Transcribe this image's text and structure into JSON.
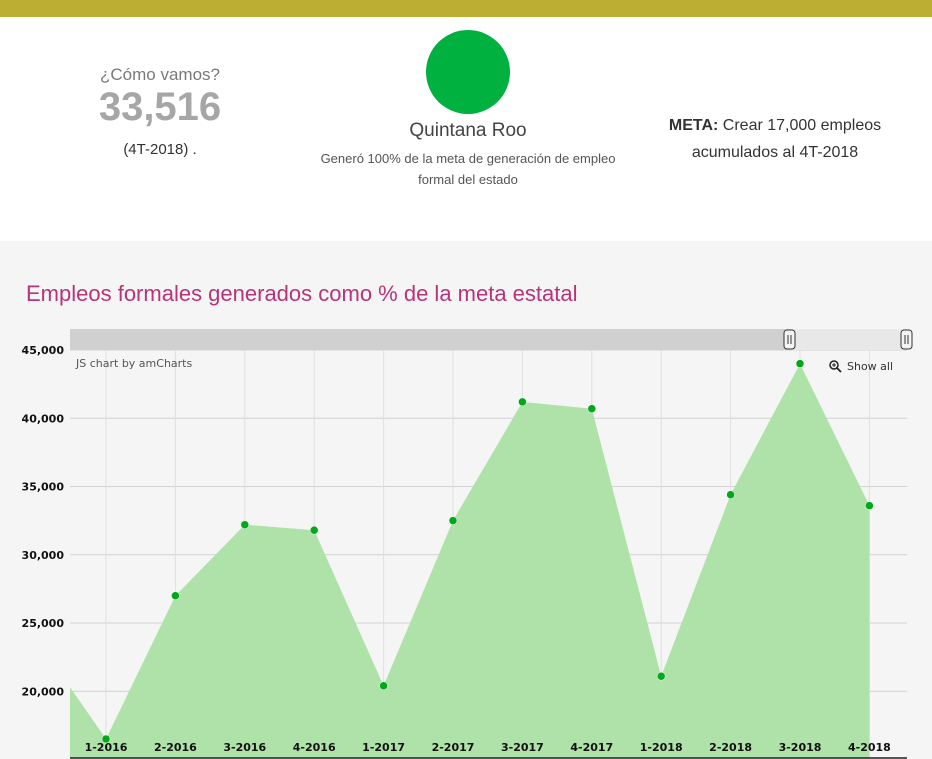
{
  "summary": {
    "question": "¿Cómo vamos?",
    "value": "33,516",
    "period": "(4T-2018) .",
    "state_color": "#00b140",
    "state_name": "Quintana Roo",
    "description": "Generó 100% de la meta de generación de empleo formal del estado",
    "meta_label": "META:",
    "meta_text": "Crear 17,000 empleos acumulados al 4T-2018"
  },
  "chart": {
    "title": "Empleos formales generados como % de la meta estatal",
    "credit": "JS chart by amCharts",
    "show_all_label": "Show all",
    "zoom_icon": "magnifier-icon"
  },
  "chart_data": {
    "type": "area",
    "categories": [
      "1-2016",
      "2-2016",
      "3-2016",
      "4-2016",
      "1-2017",
      "2-2017",
      "3-2017",
      "4-2017",
      "1-2018",
      "2-2018",
      "3-2018",
      "4-2018"
    ],
    "values": [
      16500,
      27000,
      32200,
      31800,
      20400,
      32500,
      41200,
      40700,
      21100,
      34400,
      44000,
      33600
    ],
    "yticks": [
      20000,
      25000,
      30000,
      35000,
      40000,
      45000
    ],
    "ytick_labels": [
      "20,000",
      "25,000",
      "30,000",
      "35,000",
      "40,000",
      "45,000"
    ],
    "ylim": [
      15000,
      45000
    ],
    "grid": true,
    "fill_color": "#aee2a9",
    "point_color": "#00a81a"
  }
}
